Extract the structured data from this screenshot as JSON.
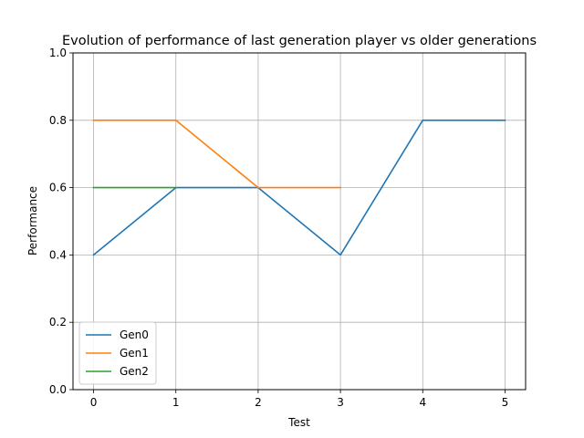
{
  "chart_data": {
    "type": "line",
    "title": "Evolution of performance of last generation player vs older generations",
    "xlabel": "Test",
    "ylabel": "Performance",
    "xlim": [
      -0.25,
      5.25
    ],
    "ylim": [
      0.0,
      1.0
    ],
    "xticks": [
      0,
      1,
      2,
      3,
      4,
      5
    ],
    "yticks": [
      0.0,
      0.2,
      0.4,
      0.6,
      0.8,
      1.0
    ],
    "xtick_labels": [
      "0",
      "1",
      "2",
      "3",
      "4",
      "5"
    ],
    "ytick_labels": [
      "0.0",
      "0.2",
      "0.4",
      "0.6",
      "0.8",
      "1.0"
    ],
    "grid": true,
    "legend_position": "lower-left",
    "series": [
      {
        "name": "Gen0",
        "color": "#1f77b4",
        "x": [
          0,
          1,
          2,
          3,
          4,
          5
        ],
        "y": [
          0.4,
          0.6,
          0.6,
          0.4,
          0.8,
          0.8
        ]
      },
      {
        "name": "Gen1",
        "color": "#ff7f0e",
        "x": [
          0,
          1,
          2,
          3
        ],
        "y": [
          0.8,
          0.8,
          0.6,
          0.6
        ]
      },
      {
        "name": "Gen2",
        "color": "#2ca02c",
        "x": [
          0,
          1
        ],
        "y": [
          0.6,
          0.6
        ]
      }
    ]
  }
}
